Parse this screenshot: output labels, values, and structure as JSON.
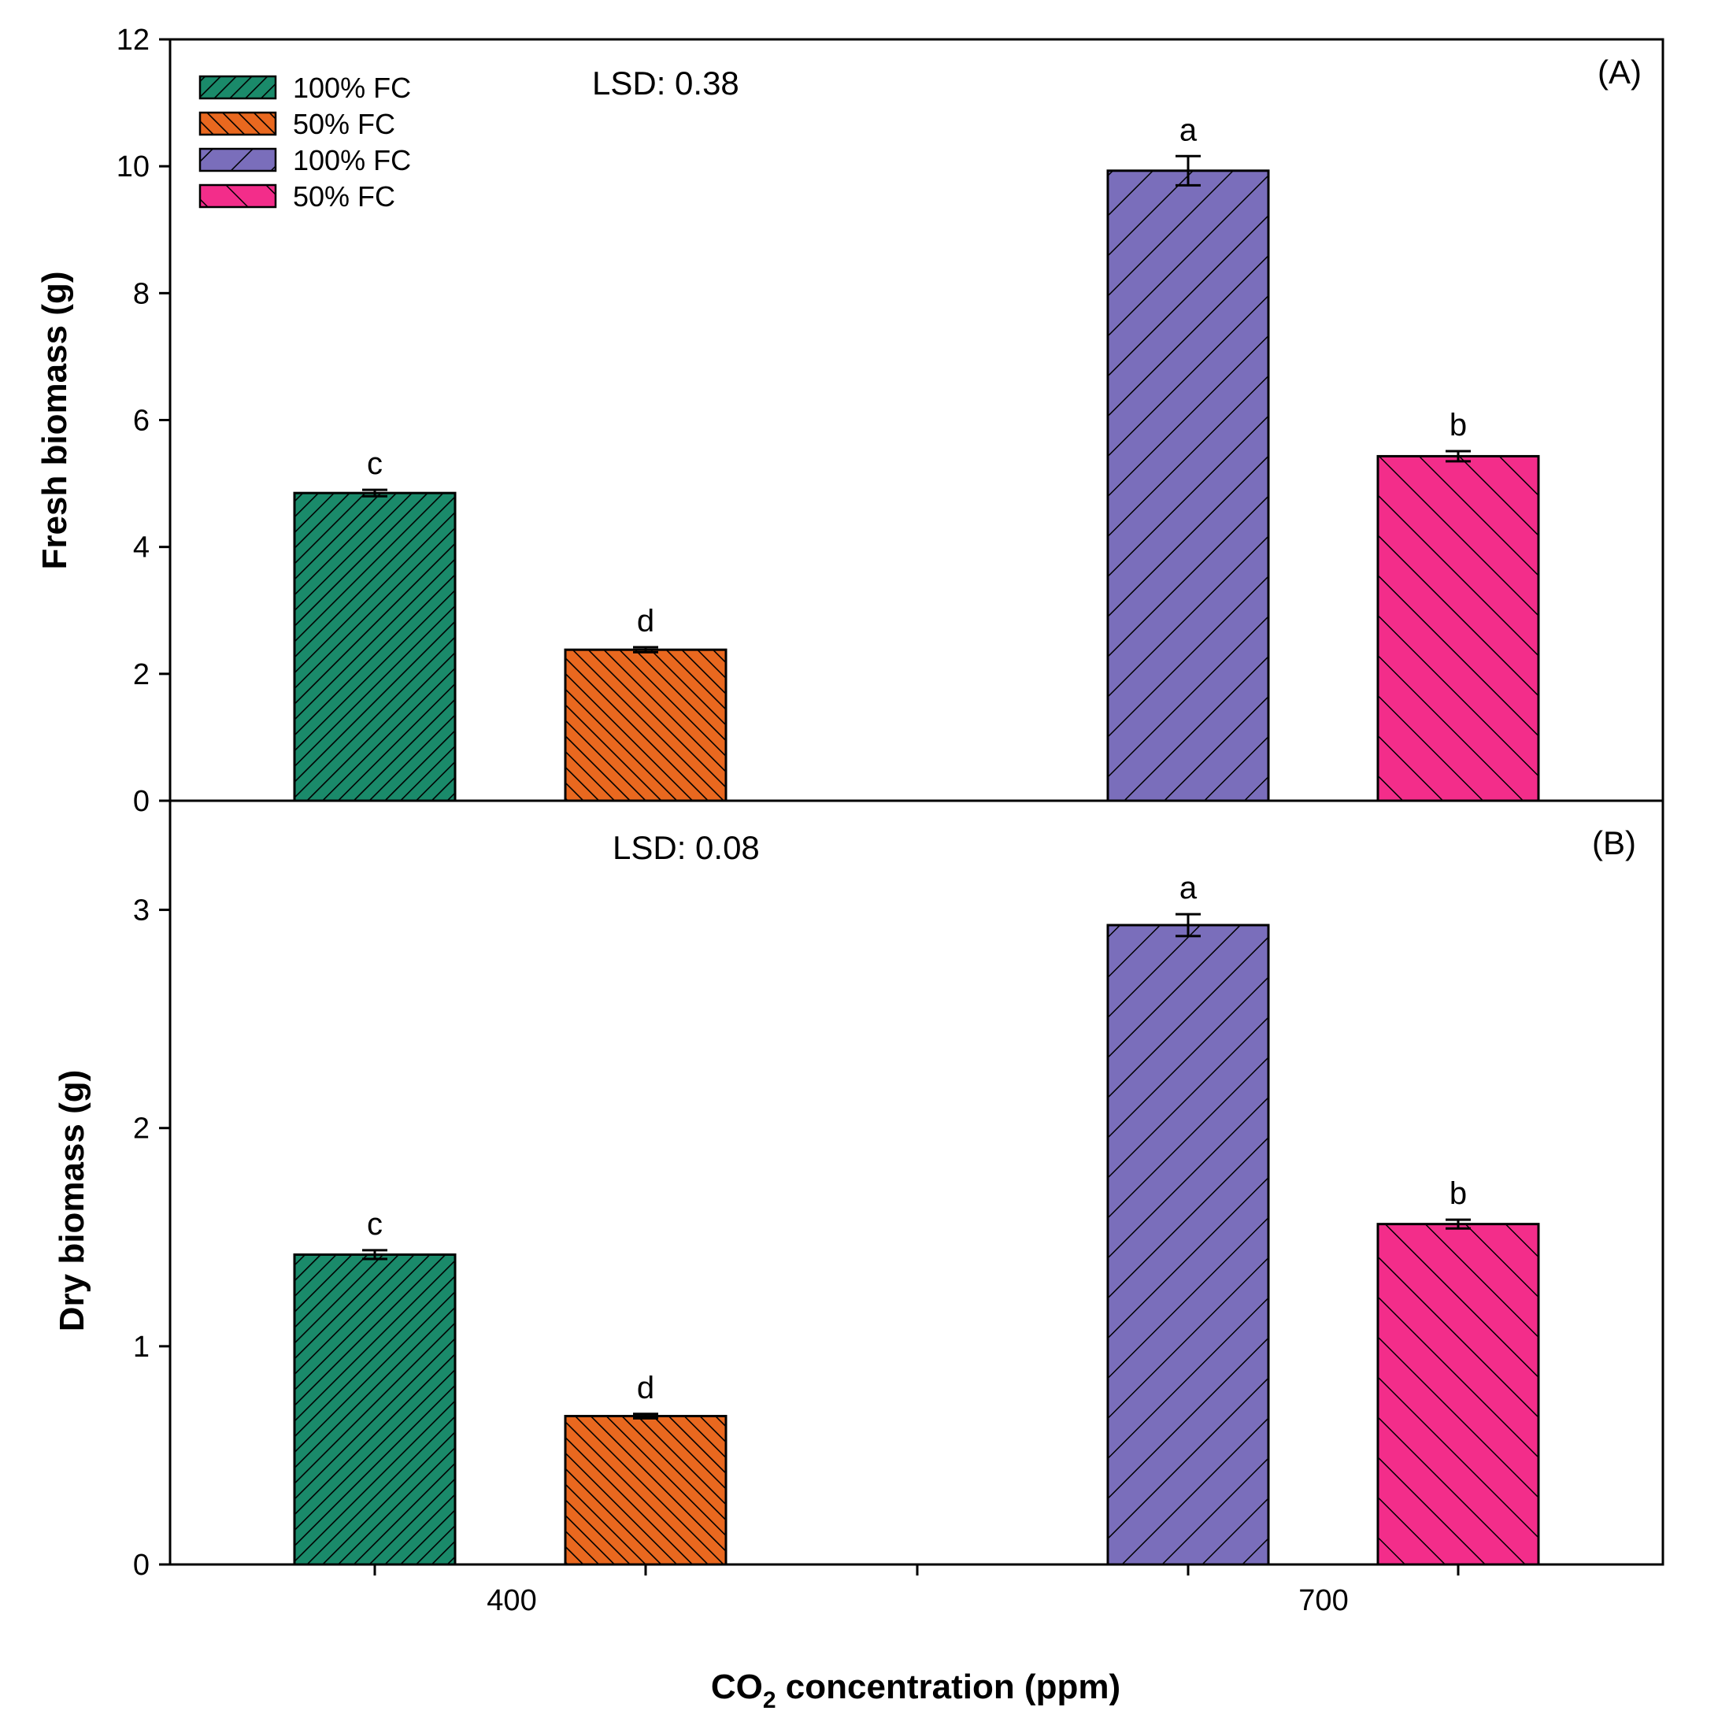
{
  "chart_data": [
    {
      "type": "bar",
      "panel_label": "(A)",
      "annotation": "LSD: 0.38",
      "ylabel": "Fresh biomass (g)",
      "xlabel": "",
      "ylim": [
        0,
        12
      ],
      "yticks": [
        "0",
        "2",
        "4",
        "6",
        "8",
        "10",
        "12"
      ],
      "categories": [
        "400",
        "700"
      ],
      "legend": [
        {
          "label": "100% FC",
          "color": "#1a8a6a",
          "pattern": "dense-forward"
        },
        {
          "label": "50% FC",
          "color": "#e9681f",
          "pattern": "dense-back"
        },
        {
          "label": "100% FC",
          "color": "#7a6ebb",
          "pattern": "sparse-forward"
        },
        {
          "label": "50% FC",
          "color": "#f32d8a",
          "pattern": "sparse-back"
        }
      ],
      "bars": [
        {
          "category": "400",
          "series": "100% FC",
          "value": 4.85,
          "error": 0.05,
          "letter": "c",
          "color": "#1a8a6a",
          "pattern": "dense-forward"
        },
        {
          "category": "400",
          "series": "50% FC",
          "value": 2.38,
          "error": 0.04,
          "letter": "d",
          "color": "#e9681f",
          "pattern": "dense-back"
        },
        {
          "category": "700",
          "series": "100% FC",
          "value": 9.93,
          "error": 0.23,
          "letter": "a",
          "color": "#7a6ebb",
          "pattern": "sparse-forward"
        },
        {
          "category": "700",
          "series": "50% FC",
          "value": 5.43,
          "error": 0.08,
          "letter": "b",
          "color": "#f32d8a",
          "pattern": "sparse-back"
        }
      ]
    },
    {
      "type": "bar",
      "panel_label": "(B)",
      "annotation": "LSD: 0.08",
      "ylabel": "Dry biomass (g)",
      "xlabel": "CO2 concentration (ppm)",
      "ylim": [
        0,
        3.5
      ],
      "yticks": [
        "0",
        "1",
        "2",
        "3"
      ],
      "categories": [
        "400",
        "700"
      ],
      "bars": [
        {
          "category": "400",
          "series": "100% FC",
          "value": 1.42,
          "error": 0.02,
          "letter": "c",
          "color": "#1a8a6a",
          "pattern": "dense-forward"
        },
        {
          "category": "400",
          "series": "50% FC",
          "value": 0.68,
          "error": 0.01,
          "letter": "d",
          "color": "#e9681f",
          "pattern": "dense-back"
        },
        {
          "category": "700",
          "series": "100% FC",
          "value": 2.93,
          "error": 0.05,
          "letter": "a",
          "color": "#7a6ebb",
          "pattern": "sparse-forward"
        },
        {
          "category": "700",
          "series": "50% FC",
          "value": 1.56,
          "error": 0.02,
          "letter": "b",
          "color": "#f32d8a",
          "pattern": "sparse-back"
        }
      ]
    }
  ],
  "xlabel_parts": {
    "prefix": "CO",
    "subscript": "2",
    "suffix": " concentration (ppm)"
  }
}
